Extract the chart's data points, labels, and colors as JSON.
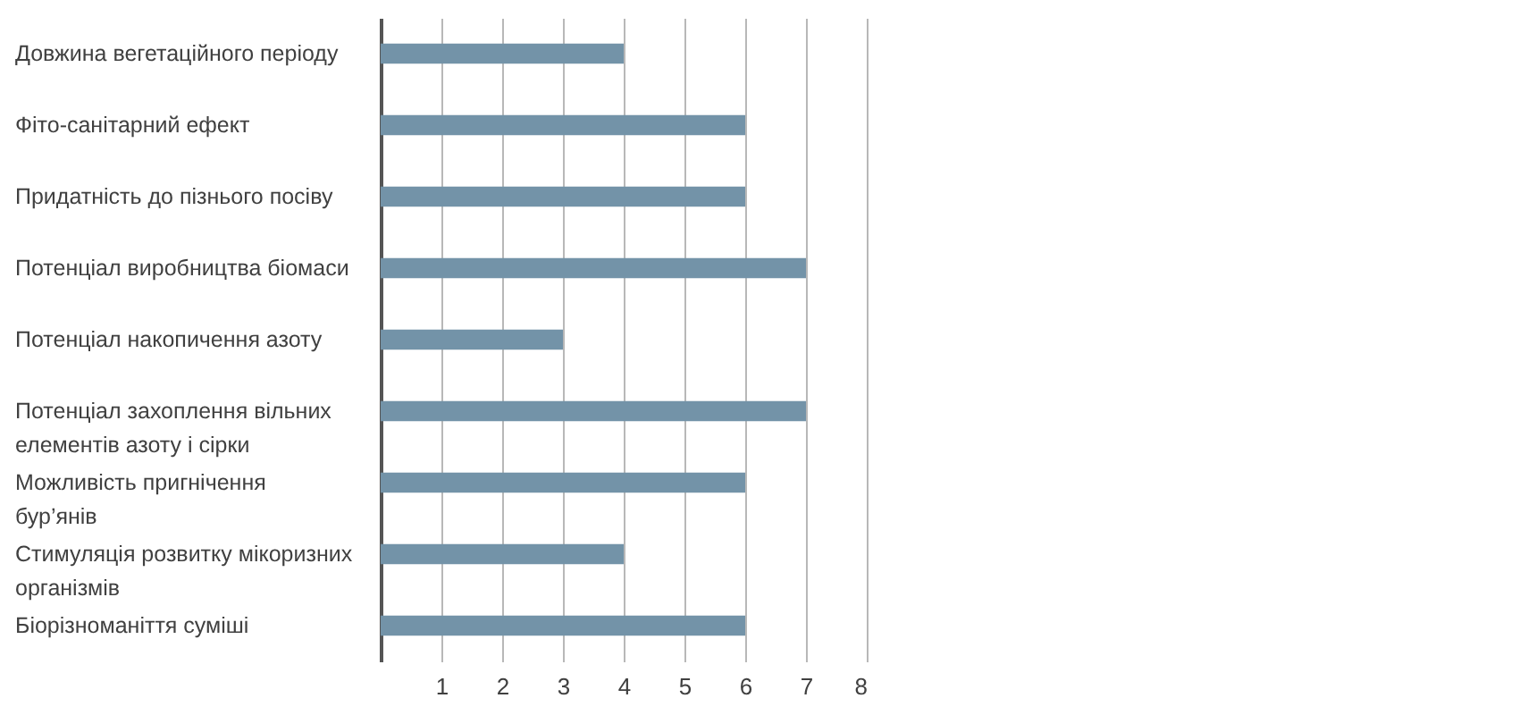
{
  "chart_data": {
    "type": "bar",
    "orientation": "horizontal",
    "categories": [
      "Довжина вегетаційного періоду",
      "Фіто-санітарний ефект",
      "Придатність до пізнього посіву",
      "Потенціал виробництва біомаси",
      "Потенціал накопичення азоту",
      "Потенціал захоплення вільних елементів азоту і сірки",
      "Можливість пригнічення бур’янів",
      "Стимуляція розвитку мікоризних організмів",
      "Біорізноманіття суміші"
    ],
    "values": [
      4,
      6,
      6,
      7,
      3,
      7,
      6,
      4,
      6
    ],
    "color": "#7393a8",
    "xlim": [
      0,
      8
    ],
    "xticks": [
      1,
      2,
      3,
      4,
      5,
      6,
      7,
      8
    ],
    "grid": "x"
  }
}
